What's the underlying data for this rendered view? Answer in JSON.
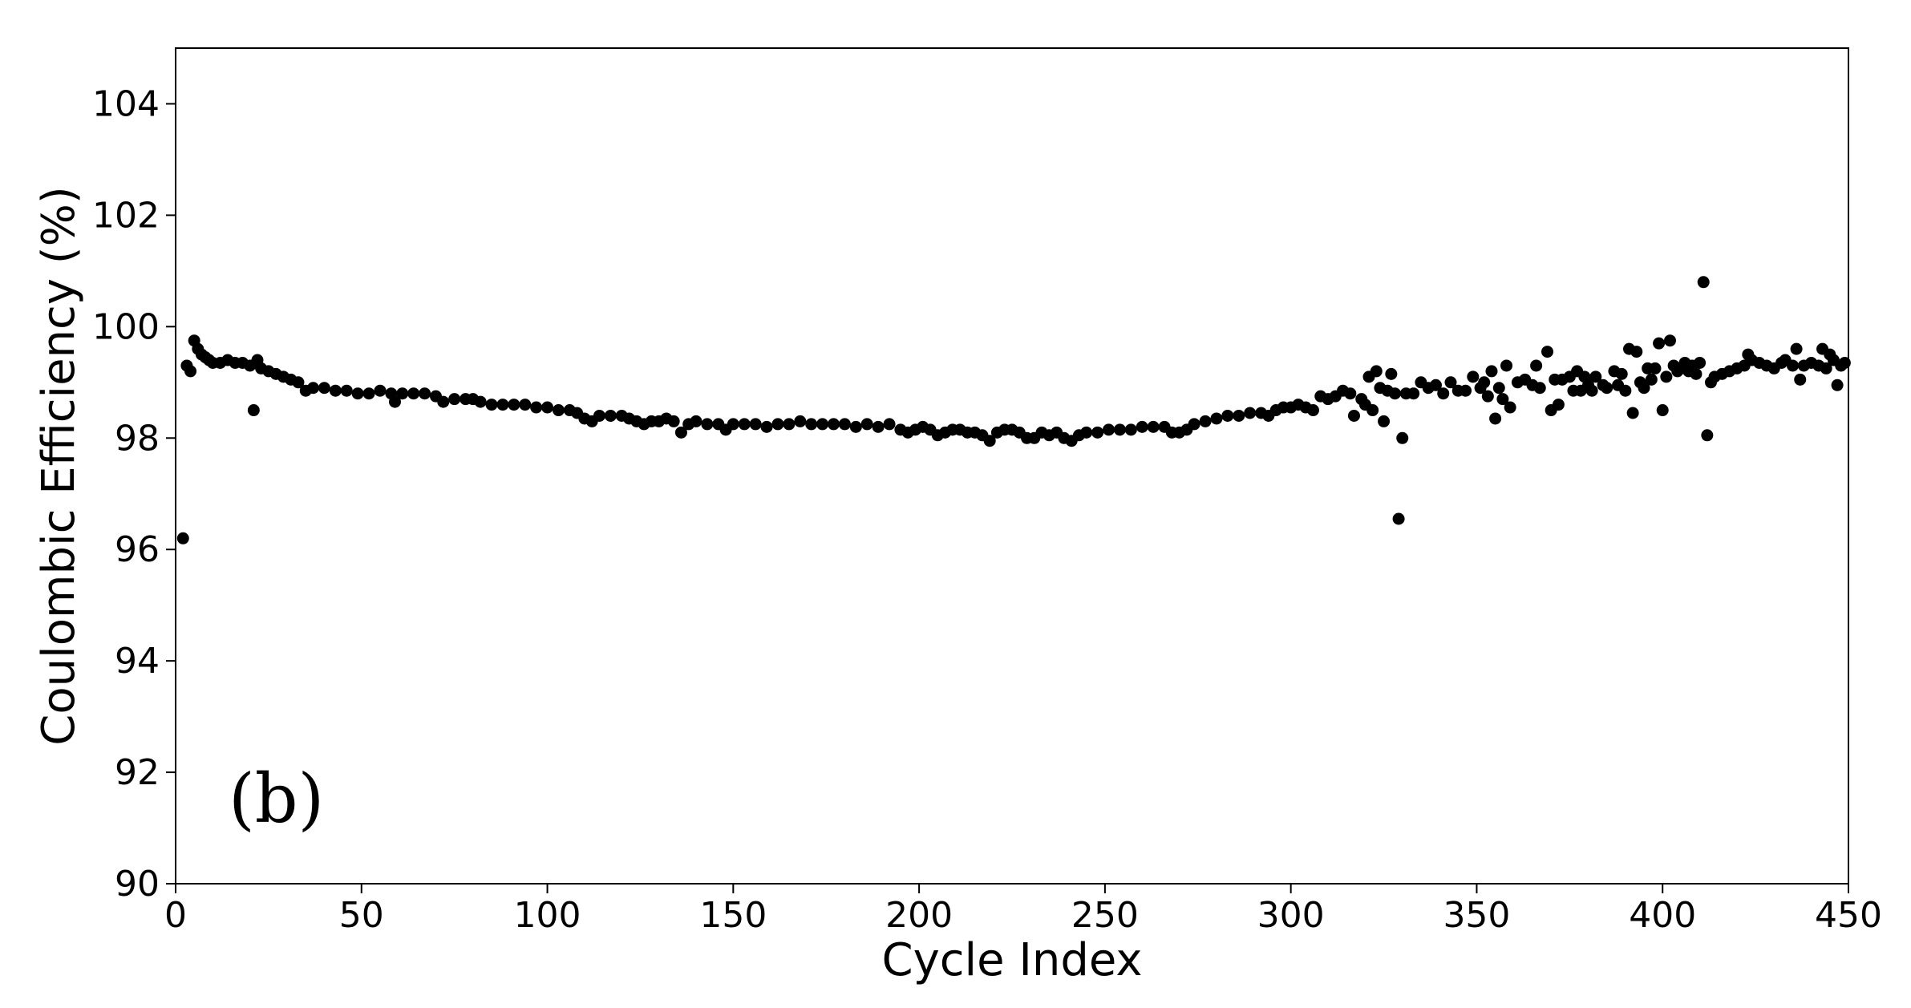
{
  "chart_data": {
    "type": "scatter",
    "xlabel": "Cycle Index",
    "ylabel": "Coulombic Efficiency (%)",
    "xlim": [
      0,
      450
    ],
    "ylim": [
      90,
      105
    ],
    "xticks": [
      0,
      50,
      100,
      150,
      200,
      250,
      300,
      350,
      400,
      450
    ],
    "yticks": [
      90,
      92,
      94,
      96,
      98,
      100,
      102,
      104
    ],
    "grid": false,
    "legend": "none",
    "annotation": "(b)",
    "marker_color": "#000000",
    "series": [
      {
        "points": [
          [
            2,
            96.2
          ],
          [
            3,
            99.3
          ],
          [
            4,
            99.2
          ],
          [
            5,
            99.75
          ],
          [
            6,
            99.6
          ],
          [
            7,
            99.5
          ],
          [
            8,
            99.45
          ],
          [
            9,
            99.4
          ],
          [
            10,
            99.35
          ],
          [
            12,
            99.35
          ],
          [
            14,
            99.4
          ],
          [
            16,
            99.35
          ],
          [
            18,
            99.35
          ],
          [
            20,
            99.3
          ],
          [
            21,
            98.5
          ],
          [
            22,
            99.4
          ],
          [
            23,
            99.25
          ],
          [
            25,
            99.2
          ],
          [
            27,
            99.15
          ],
          [
            29,
            99.1
          ],
          [
            31,
            99.05
          ],
          [
            33,
            99.0
          ],
          [
            35,
            98.85
          ],
          [
            37,
            98.9
          ],
          [
            40,
            98.9
          ],
          [
            43,
            98.85
          ],
          [
            46,
            98.85
          ],
          [
            49,
            98.8
          ],
          [
            52,
            98.8
          ],
          [
            55,
            98.85
          ],
          [
            58,
            98.8
          ],
          [
            59,
            98.65
          ],
          [
            61,
            98.8
          ],
          [
            64,
            98.8
          ],
          [
            67,
            98.8
          ],
          [
            70,
            98.75
          ],
          [
            72,
            98.65
          ],
          [
            75,
            98.7
          ],
          [
            78,
            98.7
          ],
          [
            80,
            98.7
          ],
          [
            82,
            98.65
          ],
          [
            85,
            98.6
          ],
          [
            88,
            98.6
          ],
          [
            91,
            98.6
          ],
          [
            94,
            98.6
          ],
          [
            97,
            98.55
          ],
          [
            100,
            98.55
          ],
          [
            103,
            98.5
          ],
          [
            106,
            98.5
          ],
          [
            108,
            98.45
          ],
          [
            110,
            98.35
          ],
          [
            112,
            98.3
          ],
          [
            114,
            98.4
          ],
          [
            117,
            98.4
          ],
          [
            120,
            98.4
          ],
          [
            122,
            98.35
          ],
          [
            124,
            98.3
          ],
          [
            126,
            98.25
          ],
          [
            128,
            98.3
          ],
          [
            130,
            98.3
          ],
          [
            132,
            98.35
          ],
          [
            134,
            98.3
          ],
          [
            136,
            98.1
          ],
          [
            138,
            98.25
          ],
          [
            140,
            98.3
          ],
          [
            143,
            98.25
          ],
          [
            146,
            98.25
          ],
          [
            148,
            98.15
          ],
          [
            150,
            98.25
          ],
          [
            153,
            98.25
          ],
          [
            156,
            98.25
          ],
          [
            159,
            98.2
          ],
          [
            162,
            98.25
          ],
          [
            165,
            98.25
          ],
          [
            168,
            98.3
          ],
          [
            171,
            98.25
          ],
          [
            174,
            98.25
          ],
          [
            177,
            98.25
          ],
          [
            180,
            98.25
          ],
          [
            183,
            98.2
          ],
          [
            186,
            98.25
          ],
          [
            189,
            98.2
          ],
          [
            192,
            98.25
          ],
          [
            195,
            98.15
          ],
          [
            197,
            98.1
          ],
          [
            199,
            98.15
          ],
          [
            201,
            98.2
          ],
          [
            203,
            98.15
          ],
          [
            205,
            98.05
          ],
          [
            207,
            98.1
          ],
          [
            209,
            98.15
          ],
          [
            211,
            98.15
          ],
          [
            213,
            98.1
          ],
          [
            215,
            98.1
          ],
          [
            217,
            98.05
          ],
          [
            219,
            97.95
          ],
          [
            221,
            98.1
          ],
          [
            223,
            98.15
          ],
          [
            225,
            98.15
          ],
          [
            227,
            98.1
          ],
          [
            229,
            98.0
          ],
          [
            231,
            98.0
          ],
          [
            233,
            98.1
          ],
          [
            235,
            98.05
          ],
          [
            237,
            98.1
          ],
          [
            239,
            98.0
          ],
          [
            241,
            97.95
          ],
          [
            243,
            98.05
          ],
          [
            245,
            98.1
          ],
          [
            248,
            98.1
          ],
          [
            251,
            98.15
          ],
          [
            254,
            98.15
          ],
          [
            257,
            98.15
          ],
          [
            260,
            98.2
          ],
          [
            263,
            98.2
          ],
          [
            266,
            98.2
          ],
          [
            268,
            98.1
          ],
          [
            270,
            98.1
          ],
          [
            272,
            98.15
          ],
          [
            274,
            98.25
          ],
          [
            277,
            98.3
          ],
          [
            280,
            98.35
          ],
          [
            283,
            98.4
          ],
          [
            286,
            98.4
          ],
          [
            289,
            98.45
          ],
          [
            292,
            98.45
          ],
          [
            294,
            98.4
          ],
          [
            296,
            98.5
          ],
          [
            298,
            98.55
          ],
          [
            300,
            98.55
          ],
          [
            302,
            98.6
          ],
          [
            304,
            98.55
          ],
          [
            306,
            98.5
          ],
          [
            308,
            98.75
          ],
          [
            310,
            98.7
          ],
          [
            312,
            98.75
          ],
          [
            314,
            98.85
          ],
          [
            316,
            98.8
          ],
          [
            317,
            98.4
          ],
          [
            319,
            98.7
          ],
          [
            320,
            98.6
          ],
          [
            321,
            99.1
          ],
          [
            322,
            98.5
          ],
          [
            323,
            99.2
          ],
          [
            324,
            98.9
          ],
          [
            325,
            98.3
          ],
          [
            326,
            98.85
          ],
          [
            327,
            99.15
          ],
          [
            328,
            98.8
          ],
          [
            329,
            96.55
          ],
          [
            330,
            98.0
          ],
          [
            331,
            98.8
          ],
          [
            333,
            98.8
          ],
          [
            335,
            99.0
          ],
          [
            337,
            98.9
          ],
          [
            339,
            98.95
          ],
          [
            341,
            98.8
          ],
          [
            343,
            99.0
          ],
          [
            345,
            98.85
          ],
          [
            347,
            98.85
          ],
          [
            349,
            99.1
          ],
          [
            351,
            98.9
          ],
          [
            352,
            99.0
          ],
          [
            353,
            98.75
          ],
          [
            354,
            99.2
          ],
          [
            355,
            98.35
          ],
          [
            356,
            98.9
          ],
          [
            357,
            98.7
          ],
          [
            358,
            99.3
          ],
          [
            359,
            98.55
          ],
          [
            361,
            99.0
          ],
          [
            363,
            99.05
          ],
          [
            365,
            98.95
          ],
          [
            366,
            99.3
          ],
          [
            367,
            98.9
          ],
          [
            369,
            99.55
          ],
          [
            370,
            98.5
          ],
          [
            371,
            99.05
          ],
          [
            372,
            98.6
          ],
          [
            373,
            99.05
          ],
          [
            375,
            99.1
          ],
          [
            376,
            98.85
          ],
          [
            377,
            99.2
          ],
          [
            378,
            98.85
          ],
          [
            379,
            99.1
          ],
          [
            380,
            98.95
          ],
          [
            381,
            98.85
          ],
          [
            382,
            99.1
          ],
          [
            384,
            98.95
          ],
          [
            385,
            98.9
          ],
          [
            387,
            99.2
          ],
          [
            388,
            98.95
          ],
          [
            389,
            99.15
          ],
          [
            390,
            98.85
          ],
          [
            391,
            99.6
          ],
          [
            392,
            98.45
          ],
          [
            393,
            99.55
          ],
          [
            394,
            99.0
          ],
          [
            395,
            98.9
          ],
          [
            396,
            99.25
          ],
          [
            397,
            99.05
          ],
          [
            398,
            99.25
          ],
          [
            399,
            99.7
          ],
          [
            400,
            98.5
          ],
          [
            401,
            99.1
          ],
          [
            402,
            99.75
          ],
          [
            403,
            99.3
          ],
          [
            404,
            99.2
          ],
          [
            405,
            99.25
          ],
          [
            406,
            99.35
          ],
          [
            407,
            99.2
          ],
          [
            408,
            99.3
          ],
          [
            409,
            99.15
          ],
          [
            410,
            99.35
          ],
          [
            411,
            100.8
          ],
          [
            412,
            98.05
          ],
          [
            413,
            99.0
          ],
          [
            414,
            99.1
          ],
          [
            416,
            99.15
          ],
          [
            418,
            99.2
          ],
          [
            420,
            99.25
          ],
          [
            422,
            99.3
          ],
          [
            423,
            99.5
          ],
          [
            424,
            99.4
          ],
          [
            426,
            99.35
          ],
          [
            428,
            99.3
          ],
          [
            430,
            99.25
          ],
          [
            432,
            99.35
          ],
          [
            433,
            99.4
          ],
          [
            435,
            99.3
          ],
          [
            436,
            99.6
          ],
          [
            437,
            99.05
          ],
          [
            438,
            99.3
          ],
          [
            440,
            99.35
          ],
          [
            442,
            99.3
          ],
          [
            443,
            99.6
          ],
          [
            444,
            99.25
          ],
          [
            445,
            99.5
          ],
          [
            446,
            99.4
          ],
          [
            447,
            98.95
          ],
          [
            448,
            99.3
          ],
          [
            449,
            99.35
          ]
        ]
      }
    ]
  }
}
